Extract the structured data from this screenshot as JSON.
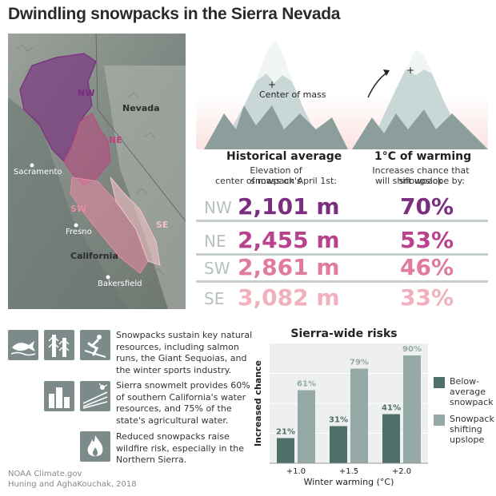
{
  "title": "Dwindling snowpacks in the Sierra Nevada",
  "map": {
    "labels": {
      "nevada": "Nevada",
      "california": "California",
      "sacramento": "Sacramento",
      "fresno": "Fresno",
      "bakersfield": "Bakersfield"
    },
    "regions": {
      "nw": "NW",
      "ne": "NE",
      "sw": "SW",
      "se": "SE"
    },
    "colors": {
      "nw": "#7a2e80",
      "ne": "#c2407e",
      "sw": "#e98aa6",
      "se": "#f3c2c7"
    }
  },
  "mountains": {
    "center_label": "Center of mass"
  },
  "historical": {
    "heading": "Historical average",
    "sub1": "Elevation of snowpack's",
    "sub2": "center of mass on April 1st:"
  },
  "warming": {
    "heading": "1°C of warming",
    "sub1": "Increases chance that snowpack",
    "sub2": "will shift upslope by:"
  },
  "rows": [
    {
      "region": "NW",
      "elevation": "2,101 m",
      "chance": "70%",
      "color": "#7a2e80"
    },
    {
      "region": "NE",
      "elevation": "2,455 m",
      "chance": "53%",
      "color": "#b8428c"
    },
    {
      "region": "SW",
      "elevation": "2,861 m",
      "chance": "46%",
      "color": "#e07b9c"
    },
    {
      "region": "SE",
      "elevation": "3,082 m",
      "chance": "33%",
      "color": "#f0b0bd"
    }
  ],
  "bullets": [
    {
      "text_lines": [
        "Snowpacks sustain key natural",
        "resources, including salmon",
        "runs, the Giant Sequoias, and",
        "the winter sports industry."
      ],
      "icons": [
        "salmon-icon",
        "sequoia-icon",
        "skier-icon"
      ]
    },
    {
      "text_lines": [
        "Sierra snowmelt provides 60%",
        "of southern California's water",
        "resources, and 75% of the",
        "state's agricultural water."
      ],
      "icons": [
        "city-icon",
        "farm-icon"
      ]
    },
    {
      "text_lines": [
        "Reduced snowpacks raise",
        "wildfire risk, especially in the",
        "Northern Sierra."
      ],
      "icons": [
        "fire-icon"
      ]
    }
  ],
  "credits": [
    "NOAA Climate.gov",
    "Huning and AghaKouchak, 2018"
  ],
  "chart_data": {
    "type": "bar",
    "title": "Sierra-wide risks",
    "xlabel": "Winter warming (°C)",
    "ylabel": "Increased chance",
    "categories": [
      "+1.0",
      "+1.5",
      "+2.0"
    ],
    "series": [
      {
        "name": "Below-average snowpack",
        "values": [
          21,
          31,
          41
        ],
        "color": "#4e6f6a"
      },
      {
        "name": "Snowpack shifting upslope",
        "values": [
          61,
          79,
          90
        ],
        "color": "#95a9a7"
      }
    ],
    "data_labels": [
      [
        "21%",
        "31%",
        "41%"
      ],
      [
        "61%",
        "79%",
        "90%"
      ]
    ],
    "ylim": [
      0,
      100
    ],
    "grid": true,
    "legend": "right",
    "legend_lines": [
      [
        "Below-",
        "average",
        "snowpack"
      ],
      [
        "Snowpack",
        "shifting",
        "upslope"
      ]
    ]
  }
}
